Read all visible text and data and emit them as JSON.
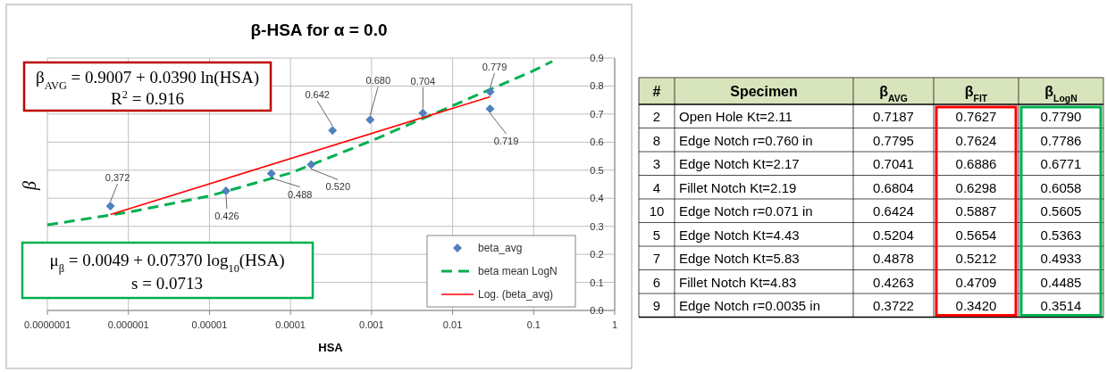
{
  "chart_data": [
    {
      "type": "scatter",
      "title": "β-HSA for α = 0.0",
      "xlabel": "HSA",
      "ylabel": "β",
      "log": "x",
      "grid": true,
      "legend": "bottom right",
      "xlim": [
        1e-07,
        1
      ],
      "xticks": [
        {
          "value": 1e-07,
          "label": "0.0000001"
        },
        {
          "value": 1e-06,
          "label": "0.000001"
        },
        {
          "value": 1e-05,
          "label": "0.00001"
        },
        {
          "value": 0.0001,
          "label": "0.0001"
        },
        {
          "value": 0.001,
          "label": "0.001"
        },
        {
          "value": 0.01,
          "label": "0.01"
        },
        {
          "value": 0.1,
          "label": "0.1"
        },
        1
      ],
      "ylim": [
        0,
        0.9
      ],
      "yticks": [
        {
          "value": 0,
          "label": "0.0"
        },
        0.1,
        0.2,
        0.3,
        0.4,
        0.5,
        0.6,
        0.7,
        0.8,
        0.9
      ],
      "annotations": [
        "β$_{AVG}$ = 0.9007 + 0.0390 ln(HSA)",
        "R$^{2}$ = 0.916",
        "μ$_{β}$ = 0.0049 + 0.07370 log$_{10}$(HSA)",
        "s = 0.0713"
      ],
      "series": [
        {
          "name": "beta_avg",
          "type": "scatter",
          "marker": "diamond",
          "color": "#4f81bd",
          "x": [
            6e-07,
            1.6e-05,
            5.8e-05,
            0.00018,
            0.00033,
            0.00096,
            0.0043,
            0.029,
            0.029
          ],
          "values": [
            0.372,
            0.426,
            0.488,
            0.52,
            0.642,
            0.68,
            0.704,
            0.779,
            0.719
          ],
          "value_labels": [
            "0.372",
            "0.426",
            "0.488",
            "0.520",
            "0.642",
            "0.680",
            "0.704",
            "0.779",
            "0.719"
          ]
        },
        {
          "name": "beta mean LogN",
          "type": "line",
          "line_style": "dashed",
          "color": "#00b050",
          "x": [
            1e-07,
            1e-06,
            1e-05,
            0.0001,
            0.001,
            0.01,
            0.1,
            0.17
          ],
          "values": [
            0.305,
            0.35,
            0.408,
            0.49,
            0.605,
            0.73,
            0.855,
            0.888
          ]
        },
        {
          "name": "Log. (beta_avg)",
          "type": "line",
          "line_style": "solid",
          "color": "#ff0000",
          "x": [
            6e-07,
            0.029
          ],
          "values": [
            0.342,
            0.762
          ]
        }
      ]
    },
    {
      "type": "other",
      "categories": [
        "#",
        "Specimen",
        "β$_{AVG}$",
        "β$_{FIT}$",
        "β$_{LogN}$"
      ],
      "annotations": [
        "2",
        "Open Hole Kt=2.11",
        "0.7187",
        "0.7627",
        "0.7790",
        "8",
        "Edge Notch r=0.760 in",
        "0.7795",
        "0.7624",
        "0.7786",
        "3",
        "Edge Notch Kt=2.17",
        "0.7041",
        "0.6886",
        "0.6771",
        "4",
        "Fillet Notch Kt=2.19",
        "0.6804",
        "0.6298",
        "0.6058",
        "10",
        "Edge Notch r=0.071 in",
        "0.6424",
        "0.5887",
        "0.5605",
        "5",
        "Edge Notch Kt=4.43",
        "0.5204",
        "0.5654",
        "0.5363",
        "7",
        "Edge Notch Kt=5.83",
        "0.4878",
        "0.5212",
        "0.4933",
        "6",
        "Fillet Notch Kt=4.83",
        "0.4263",
        "0.4709",
        "0.4485",
        "9",
        "Edge Notch r=0.0035 in",
        "0.3722",
        "0.3420",
        "0.3514"
      ]
    }
  ]
}
